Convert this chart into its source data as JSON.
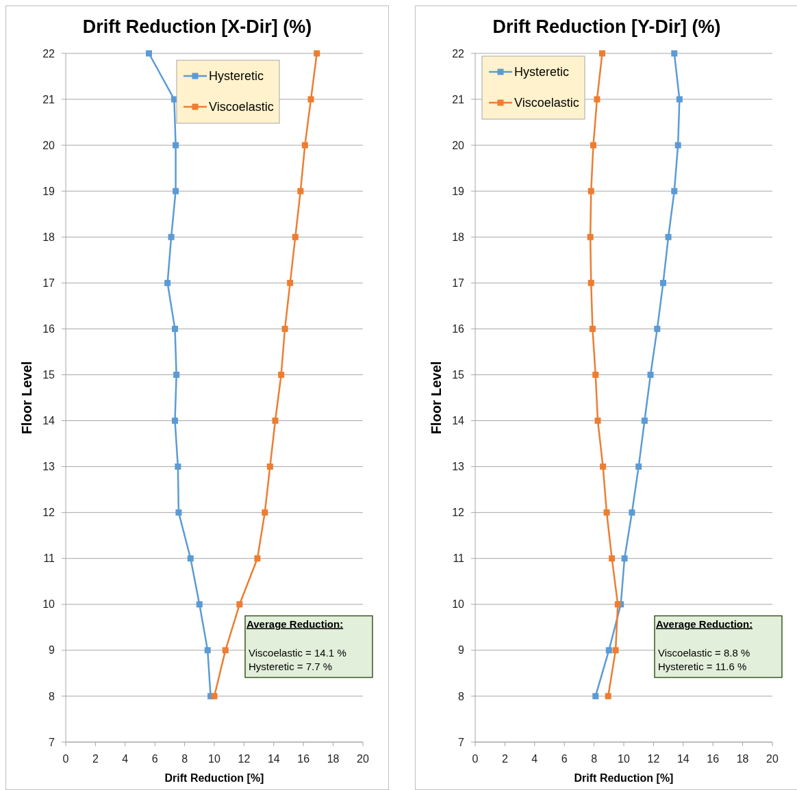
{
  "chart_data": [
    {
      "type": "line",
      "title": "Drift Reduction [X-Dir] (%)",
      "xlabel": "Drift Reduction [%]",
      "ylabel": "Floor Level",
      "xlim": [
        0,
        20
      ],
      "xticks": [
        0,
        2,
        4,
        6,
        8,
        10,
        12,
        14,
        16,
        18,
        20
      ],
      "ylim": [
        7,
        22
      ],
      "yticks": [
        7,
        8,
        9,
        10,
        11,
        12,
        13,
        14,
        15,
        16,
        17,
        18,
        19,
        20,
        21,
        22
      ],
      "grid": "y",
      "legend": "top",
      "marker": "square",
      "line_style": "solid",
      "series": [
        {
          "name": "Hysteretic",
          "color": "#5b9bd5",
          "x": [
            5.6,
            7.3,
            7.4,
            7.4,
            7.1,
            6.85,
            7.35,
            7.45,
            7.35,
            7.55,
            7.6,
            8.4,
            9.0,
            9.55,
            9.75
          ],
          "values": [
            22,
            21,
            20,
            19,
            18,
            17,
            16,
            15,
            14,
            13,
            12,
            11,
            10,
            9,
            8
          ]
        },
        {
          "name": "Viscoelastic",
          "color": "#ed7d31",
          "x": [
            16.9,
            16.5,
            16.1,
            15.8,
            15.45,
            15.1,
            14.75,
            14.5,
            14.1,
            13.75,
            13.4,
            12.9,
            11.7,
            10.75,
            10.0
          ],
          "values": [
            22,
            21,
            20,
            19,
            18,
            17,
            16,
            15,
            14,
            13,
            12,
            11,
            10,
            9,
            8
          ]
        }
      ],
      "annotations": [
        "Average Reduction:",
        "Viscoelastic = 14.1 %",
        "Hysteretic = 7.7 %"
      ]
    },
    {
      "type": "line",
      "title": "Drift Reduction [Y-Dir] (%)",
      "xlabel": "Drift Reduction [%]",
      "ylabel": "Floor Level",
      "xlim": [
        0,
        20
      ],
      "xticks": [
        0,
        2,
        4,
        6,
        8,
        10,
        12,
        14,
        16,
        18,
        20
      ],
      "ylim": [
        7,
        22
      ],
      "yticks": [
        7,
        8,
        9,
        10,
        11,
        12,
        13,
        14,
        15,
        16,
        17,
        18,
        19,
        20,
        21,
        22
      ],
      "grid": "y",
      "legend": "top left",
      "marker": "square",
      "line_style": "solid",
      "series": [
        {
          "name": "Hysteretic",
          "color": "#5b9bd5",
          "x": [
            13.4,
            13.75,
            13.65,
            13.4,
            13.0,
            12.65,
            12.25,
            11.8,
            11.4,
            11.0,
            10.55,
            10.05,
            9.8,
            9.0,
            8.1
          ],
          "values": [
            22,
            21,
            20,
            19,
            18,
            17,
            16,
            15,
            14,
            13,
            12,
            11,
            10,
            9,
            8
          ]
        },
        {
          "name": "Viscoelastic",
          "color": "#ed7d31",
          "x": [
            8.55,
            8.2,
            7.95,
            7.8,
            7.75,
            7.8,
            7.9,
            8.1,
            8.25,
            8.6,
            8.85,
            9.2,
            9.6,
            9.45,
            8.95
          ],
          "values": [
            22,
            21,
            20,
            19,
            18,
            17,
            16,
            15,
            14,
            13,
            12,
            11,
            10,
            9,
            8
          ]
        }
      ],
      "annotations": [
        "Average Reduction:",
        "Viscoelastic = 8.8 %",
        "Hysteretic = 11.6 %"
      ]
    }
  ]
}
